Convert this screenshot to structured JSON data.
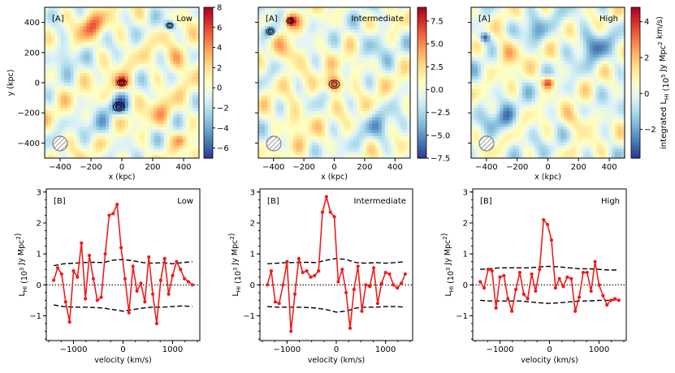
{
  "figure": {
    "colorbar_label_prefix": "integrated L",
    "colorbar_label_sub": "HI",
    "colorbar_label_suffix": "(10",
    "colorbar_label_exp": "5",
    "colorbar_label_end": "Jy Mpc",
    "colorbar_label_exp2": "2",
    "colorbar_label_units": "km/s)"
  },
  "chart_data": [
    {
      "type": "heatmap",
      "panel": "A",
      "tag": "[A]",
      "label": "Low",
      "xlabel": "x (kpc)",
      "ylabel": "y (kpc)",
      "xlim": [
        -500,
        500
      ],
      "ylim": [
        -500,
        500
      ],
      "xticks": [
        -400,
        -200,
        0,
        200,
        400
      ],
      "yticks": [
        -400,
        -200,
        0,
        200,
        400
      ],
      "colorbar": {
        "min": -7,
        "max": 8,
        "ticks": [
          -6,
          -4,
          -2,
          0,
          2,
          4,
          6,
          8
        ]
      },
      "blobs": [
        {
          "x": 0,
          "y": 0,
          "v": 7.2,
          "s": 32
        },
        {
          "x": -20,
          "y": -160,
          "v": -6.5,
          "s": 40
        },
        {
          "x": 310,
          "y": 380,
          "v": -6,
          "s": 25
        },
        {
          "x": 380,
          "y": -380,
          "v": 3,
          "s": 30
        },
        {
          "x": -200,
          "y": 380,
          "v": 4,
          "s": 60
        },
        {
          "x": 380,
          "y": 150,
          "v": 3,
          "s": 60
        },
        {
          "x": -380,
          "y": 180,
          "v": -3,
          "s": 60
        },
        {
          "x": -150,
          "y": -300,
          "v": -3,
          "s": 60
        },
        {
          "x": 250,
          "y": -200,
          "v": 2.5,
          "s": 60
        }
      ]
    },
    {
      "type": "heatmap",
      "panel": "A",
      "tag": "[A]",
      "label": "Intermediate",
      "xlabel": "x (kpc)",
      "ylabel": "",
      "xlim": [
        -500,
        500
      ],
      "ylim": [
        -500,
        500
      ],
      "xticks": [
        -400,
        -200,
        0,
        200,
        400
      ],
      "yticks": [
        -400,
        -200,
        0,
        200,
        400
      ],
      "colorbar": {
        "min": -7.5,
        "max": 9,
        "ticks": [
          -7.5,
          -5.0,
          -2.5,
          0.0,
          2.5,
          5.0,
          7.5
        ]
      },
      "blobs": [
        {
          "x": 0,
          "y": -10,
          "v": 8.5,
          "s": 38
        },
        {
          "x": -290,
          "y": 410,
          "v": 7.5,
          "s": 28
        },
        {
          "x": -420,
          "y": 340,
          "v": -7,
          "s": 30
        },
        {
          "x": -300,
          "y": 200,
          "v": 4,
          "s": 60
        },
        {
          "x": 250,
          "y": 250,
          "v": -3,
          "s": 70
        },
        {
          "x": -250,
          "y": -250,
          "v": 3,
          "s": 60
        },
        {
          "x": 300,
          "y": -300,
          "v": -3,
          "s": 70
        },
        {
          "x": 150,
          "y": 100,
          "v": 2,
          "s": 50
        }
      ]
    },
    {
      "type": "heatmap",
      "panel": "A",
      "tag": "[A]",
      "label": "High",
      "xlabel": "x (kpc)",
      "ylabel": "",
      "xlim": [
        -500,
        500
      ],
      "ylim": [
        -500,
        500
      ],
      "xticks": [
        -400,
        -200,
        0,
        200,
        400
      ],
      "yticks": [
        -400,
        -200,
        0,
        200,
        400
      ],
      "colorbar": {
        "min": -3.6,
        "max": 4.8,
        "ticks": [
          -2,
          0,
          2,
          4
        ]
      },
      "blobs": [
        {
          "x": 0,
          "y": 0,
          "v": 4.5,
          "s": 30
        },
        {
          "x": -410,
          "y": 300,
          "v": -3.5,
          "s": 25
        },
        {
          "x": -250,
          "y": 200,
          "v": 2,
          "s": 70
        },
        {
          "x": 300,
          "y": 250,
          "v": -2,
          "s": 70
        },
        {
          "x": 200,
          "y": -250,
          "v": 2,
          "s": 60
        },
        {
          "x": -300,
          "y": -250,
          "v": -2,
          "s": 60
        },
        {
          "x": -100,
          "y": 350,
          "v": -1.5,
          "s": 60
        }
      ]
    },
    {
      "type": "line",
      "panel": "B",
      "tag": "[B]",
      "label": "Low",
      "xlabel": "velocity (km/s)",
      "ylabel": "",
      "xlim": [
        -1550,
        1550
      ],
      "ylim": [
        -1.8,
        3.1
      ],
      "xticks": [
        -1000,
        0,
        1000
      ],
      "yticks": [
        -1,
        0,
        1,
        2,
        3
      ],
      "x": [
        -1400,
        -1320,
        -1240,
        -1160,
        -1080,
        -1000,
        -920,
        -840,
        -760,
        -680,
        -600,
        -520,
        -440,
        -360,
        -280,
        -200,
        -120,
        -40,
        40,
        120,
        200,
        280,
        360,
        440,
        520,
        600,
        680,
        760,
        840,
        920,
        1000,
        1080,
        1160,
        1240,
        1320,
        1400
      ],
      "y": [
        0.15,
        0.55,
        0.35,
        -0.55,
        -1.2,
        0.45,
        0.25,
        1.35,
        -0.45,
        0.95,
        0.2,
        -0.5,
        -0.4,
        1.0,
        2.25,
        2.3,
        2.6,
        1.2,
        0.2,
        -0.9,
        0.6,
        -0.2,
        0.05,
        -0.55,
        0.9,
        -0.3,
        -1.25,
        0.15,
        0.85,
        -0.3,
        0.3,
        0.75,
        0.5,
        0.2,
        0.1,
        0.0
      ],
      "env_x": [
        -1400,
        -1200,
        -1000,
        -800,
        -600,
        -400,
        -200,
        0,
        200,
        400,
        600,
        800,
        1000,
        1200,
        1400
      ],
      "env_upper": [
        0.62,
        0.68,
        0.7,
        0.72,
        0.73,
        0.72,
        0.8,
        0.82,
        0.78,
        0.72,
        0.7,
        0.72,
        0.68,
        0.72,
        0.75
      ],
      "env_lower": [
        -0.65,
        -0.7,
        -0.72,
        -0.72,
        -0.73,
        -0.75,
        -0.8,
        -0.85,
        -0.8,
        -0.75,
        -0.72,
        -0.72,
        -0.7,
        -0.68,
        -0.7
      ]
    },
    {
      "type": "line",
      "panel": "B",
      "tag": "[B]",
      "label": "Intermediate",
      "xlabel": "velocity (km/s)",
      "ylabel": "",
      "xlim": [
        -1550,
        1550
      ],
      "ylim": [
        -1.8,
        3.1
      ],
      "xticks": [
        -1000,
        0,
        1000
      ],
      "yticks": [
        -1,
        0,
        1,
        2,
        3
      ],
      "x": [
        -1400,
        -1320,
        -1240,
        -1160,
        -1080,
        -1000,
        -920,
        -840,
        -760,
        -680,
        -600,
        -520,
        -440,
        -360,
        -280,
        -200,
        -120,
        -40,
        40,
        120,
        200,
        280,
        360,
        440,
        520,
        600,
        680,
        760,
        840,
        920,
        1000,
        1080,
        1160,
        1240,
        1320,
        1400
      ],
      "y": [
        0.0,
        0.45,
        -0.55,
        -0.6,
        0.0,
        0.75,
        -1.5,
        -0.3,
        0.85,
        0.4,
        0.45,
        0.25,
        0.3,
        0.45,
        2.35,
        2.85,
        2.35,
        2.2,
        0.1,
        0.5,
        -0.25,
        -1.4,
        -0.15,
        0.6,
        -0.85,
        0.0,
        -0.05,
        0.55,
        -0.6,
        0.05,
        0.4,
        0.35,
        0.0,
        -0.1,
        0.05,
        0.35
      ],
      "env_x": [
        -1400,
        -1200,
        -1000,
        -800,
        -600,
        -400,
        -200,
        0,
        200,
        400,
        600,
        800,
        1000,
        1200,
        1400
      ],
      "env_upper": [
        0.68,
        0.7,
        0.72,
        0.72,
        0.73,
        0.72,
        0.8,
        0.85,
        0.82,
        0.72,
        0.7,
        0.72,
        0.7,
        0.72,
        0.75
      ],
      "env_lower": [
        -0.7,
        -0.72,
        -0.72,
        -0.72,
        -0.73,
        -0.75,
        -0.8,
        -0.88,
        -0.85,
        -0.75,
        -0.72,
        -0.72,
        -0.7,
        -0.7,
        -0.72
      ]
    },
    {
      "type": "line",
      "panel": "B",
      "tag": "[B]",
      "label": "High",
      "xlabel": "velocity (km/s)",
      "ylabel": "",
      "xlim": [
        -1550,
        1550
      ],
      "ylim": [
        -1.8,
        3.1
      ],
      "xticks": [
        -1000,
        0,
        1000
      ],
      "yticks": [
        -1,
        0,
        1,
        2,
        3
      ],
      "x": [
        -1400,
        -1320,
        -1240,
        -1160,
        -1080,
        -1000,
        -920,
        -840,
        -760,
        -680,
        -600,
        -520,
        -440,
        -360,
        -280,
        -200,
        -120,
        -40,
        40,
        120,
        200,
        280,
        360,
        440,
        520,
        600,
        680,
        760,
        840,
        920,
        1000,
        1080,
        1160,
        1240,
        1320,
        1400
      ],
      "y": [
        0.1,
        -0.1,
        0.5,
        0.45,
        -0.75,
        0.25,
        0.3,
        -0.45,
        -0.85,
        -0.15,
        0.4,
        -0.3,
        -0.45,
        0.35,
        -0.2,
        0.5,
        2.1,
        1.95,
        1.45,
        -0.1,
        0.2,
        -0.05,
        0.25,
        0.2,
        -0.85,
        -0.4,
        0.4,
        0.4,
        -0.2,
        0.75,
        0.0,
        -0.35,
        -0.65,
        -0.5,
        -0.45,
        -0.5
      ],
      "env_x": [
        -1400,
        -1200,
        -1000,
        -800,
        -600,
        -400,
        -200,
        0,
        200,
        400,
        600,
        800,
        1000,
        1200,
        1400
      ],
      "env_upper": [
        0.5,
        0.52,
        0.55,
        0.55,
        0.55,
        0.55,
        0.58,
        0.6,
        0.58,
        0.55,
        0.52,
        0.52,
        0.5,
        0.48,
        0.48
      ],
      "env_lower": [
        -0.5,
        -0.52,
        -0.52,
        -0.52,
        -0.52,
        -0.55,
        -0.58,
        -0.6,
        -0.58,
        -0.55,
        -0.52,
        -0.52,
        -0.5,
        -0.5,
        -0.48
      ]
    }
  ],
  "shared_ylabel_b": {
    "main": "L",
    "sub": "HI",
    "rest": "(10",
    "exp": "3",
    "rest2": "Jy Mpc",
    "exp2": "2",
    "end": ")"
  }
}
